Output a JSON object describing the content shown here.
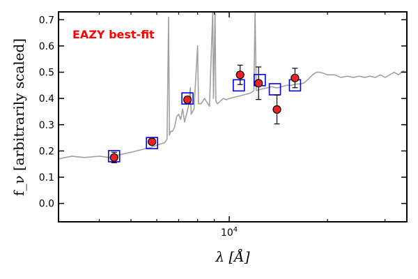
{
  "chart_data": {
    "type": "scatter",
    "title": "EAZY best-fit",
    "xlabel": "λ [Å]",
    "ylabel": "f_ν [arbitrarily scaled]",
    "x_scale": "log",
    "xlim": [
      3000,
      35000
    ],
    "ylim": [
      -0.07,
      0.73
    ],
    "x_tick_labels": [
      "10^4"
    ],
    "y_ticks": [
      0.0,
      0.1,
      0.2,
      0.3,
      0.4,
      0.5,
      0.6,
      0.7
    ],
    "y_tick_labels": [
      "0.0",
      "0.1",
      "0.2",
      "0.3",
      "0.4",
      "0.5",
      "0.6",
      "0.7"
    ],
    "grid": false,
    "colors": {
      "title": "#ff0000",
      "model_line": "#a0a0a0",
      "observed_fill": "#ee2222",
      "observed_edge": "#000000",
      "model_photometry_edge": "#0000ee"
    },
    "series": [
      {
        "style": "line",
        "points": [
          [
            3000,
            0.17
          ],
          [
            3300,
            0.18
          ],
          [
            3600,
            0.175
          ],
          [
            4000,
            0.18
          ],
          [
            4300,
            0.175
          ],
          [
            4600,
            0.185
          ],
          [
            5000,
            0.195
          ],
          [
            5400,
            0.205
          ],
          [
            5800,
            0.215
          ],
          [
            6100,
            0.225
          ],
          [
            6350,
            0.232
          ],
          [
            6450,
            0.245
          ],
          [
            6520,
            0.71
          ],
          [
            6560,
            0.26
          ],
          [
            6620,
            0.275
          ],
          [
            6700,
            0.275
          ],
          [
            6800,
            0.29
          ],
          [
            6900,
            0.33
          ],
          [
            7000,
            0.34
          ],
          [
            7100,
            0.32
          ],
          [
            7200,
            0.36
          ],
          [
            7300,
            0.31
          ],
          [
            7400,
            0.34
          ],
          [
            7500,
            0.37
          ],
          [
            7600,
            0.44
          ],
          [
            7650,
            0.34
          ],
          [
            7800,
            0.36
          ],
          [
            8000,
            0.6
          ],
          [
            8050,
            0.38
          ],
          [
            8200,
            0.38
          ],
          [
            8400,
            0.4
          ],
          [
            8700,
            0.37
          ],
          [
            8900,
            0.73
          ],
          [
            8950,
            0.4
          ],
          [
            9050,
            0.73
          ],
          [
            9100,
            0.39
          ],
          [
            9200,
            0.38
          ],
          [
            9400,
            0.39
          ],
          [
            9600,
            0.4
          ],
          [
            9800,
            0.395
          ],
          [
            10000,
            0.4
          ],
          [
            10400,
            0.405
          ],
          [
            10800,
            0.41
          ],
          [
            11200,
            0.415
          ],
          [
            11600,
            0.42
          ],
          [
            11900,
            0.43
          ],
          [
            12000,
            0.73
          ],
          [
            12100,
            0.43
          ],
          [
            12500,
            0.435
          ],
          [
            13000,
            0.44
          ],
          [
            13500,
            0.445
          ],
          [
            14000,
            0.44
          ],
          [
            14500,
            0.445
          ],
          [
            15000,
            0.45
          ],
          [
            15500,
            0.45
          ],
          [
            16000,
            0.455
          ],
          [
            16500,
            0.455
          ],
          [
            17000,
            0.46
          ],
          [
            17500,
            0.475
          ],
          [
            18000,
            0.49
          ],
          [
            18500,
            0.5
          ],
          [
            19000,
            0.5
          ],
          [
            20000,
            0.49
          ],
          [
            21000,
            0.49
          ],
          [
            22000,
            0.48
          ],
          [
            23000,
            0.485
          ],
          [
            24000,
            0.48
          ],
          [
            25000,
            0.485
          ],
          [
            26000,
            0.48
          ],
          [
            27000,
            0.485
          ],
          [
            28000,
            0.48
          ],
          [
            29000,
            0.49
          ],
          [
            30000,
            0.48
          ],
          [
            31000,
            0.49
          ],
          [
            32000,
            0.5
          ],
          [
            33000,
            0.49
          ],
          [
            34000,
            0.505
          ],
          [
            35000,
            0.5
          ]
        ]
      },
      {
        "style": "hollow-square",
        "points": [
          [
            4440,
            0.18
          ],
          [
            5800,
            0.23
          ],
          [
            7450,
            0.4
          ],
          [
            10700,
            0.45
          ],
          [
            12400,
            0.47
          ],
          [
            13800,
            0.435
          ],
          [
            15900,
            0.45
          ]
        ]
      },
      {
        "style": "circle-errorbar",
        "points": [
          {
            "x": 4440,
            "y": 0.175,
            "yerr": 0.02
          },
          {
            "x": 5800,
            "y": 0.235,
            "yerr": 0.01
          },
          {
            "x": 7450,
            "y": 0.395,
            "yerr": 0.012
          },
          {
            "x": 10800,
            "y": 0.49,
            "yerr": 0.037
          },
          {
            "x": 12300,
            "y": 0.458,
            "yerr": 0.062
          },
          {
            "x": 14000,
            "y": 0.358,
            "yerr": 0.055
          },
          {
            "x": 15900,
            "y": 0.478,
            "yerr": 0.037
          }
        ]
      }
    ]
  }
}
